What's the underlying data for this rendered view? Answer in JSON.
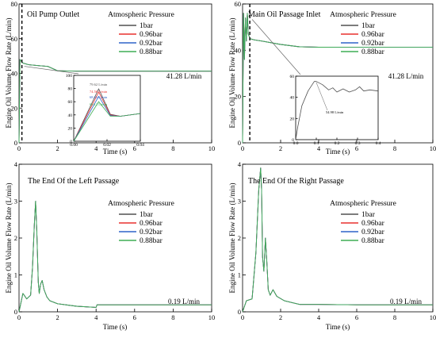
{
  "colors": {
    "s1bar": "#505050",
    "s096": "#e8312f",
    "s092": "#2f64c8",
    "s088": "#3fae55"
  },
  "chart_data": [
    {
      "type": "line",
      "title": "Oil Pump Outlet",
      "xlabel": "Time (s)",
      "ylabel": "Engine Oil Volume Flow Rate (L/min)",
      "xlim": [
        0,
        10
      ],
      "ylim": [
        0,
        80
      ],
      "xticks": [
        "0",
        "2",
        "4",
        "6",
        "8",
        "10"
      ],
      "yticks": [
        "0",
        "20",
        "40",
        "60",
        "80"
      ],
      "legend_title": "Atmospheric Pressure",
      "legend": [
        "1bar",
        "0.96bar",
        "0.92bar",
        "0.88bar"
      ],
      "steady_label": "41.28 L/min",
      "series": [
        {
          "name": "1bar",
          "x": [
            0,
            0.05,
            0.2,
            0.5,
            1,
            1.5,
            2,
            3,
            4,
            6,
            8,
            10
          ],
          "y": [
            0,
            48,
            46,
            45,
            44.5,
            44,
            41.5,
            41.3,
            41.3,
            41.28,
            41.28,
            41.28
          ]
        }
      ],
      "inset": {
        "xlim": [
          0,
          0.04
        ],
        "ylim": [
          0,
          100
        ],
        "xticks": [
          "0.00",
          "0.02",
          "0.04"
        ],
        "yticks": [
          "0",
          "20",
          "40",
          "60",
          "80",
          "100"
        ],
        "peak_labels": [
          "79.62 L/min",
          "74.56 L/min",
          "68.21 L/min",
          "60.12 L/min"
        ],
        "series": [
          {
            "name": "1bar",
            "x": [
              0,
              0.015,
              0.022,
              0.028,
              0.04
            ],
            "y": [
              0,
              79.62,
              41,
              38,
              42
            ]
          },
          {
            "name": "0.96bar",
            "x": [
              0,
              0.015,
              0.022,
              0.028,
              0.04
            ],
            "y": [
              0,
              74.56,
              40,
              38,
              42
            ]
          },
          {
            "name": "0.92bar",
            "x": [
              0,
              0.015,
              0.022,
              0.028,
              0.04
            ],
            "y": [
              0,
              68.21,
              39,
              38,
              42
            ]
          },
          {
            "name": "0.88bar",
            "x": [
              0,
              0.015,
              0.022,
              0.028,
              0.04
            ],
            "y": [
              0,
              60.12,
              38,
              38,
              42
            ]
          }
        ]
      }
    },
    {
      "type": "line",
      "title": "Main Oil Passage Inlet",
      "xlabel": "Time (s)",
      "ylabel": "Engine Oil Volume Flow Rate (L/min)",
      "xlim": [
        0,
        10
      ],
      "ylim": [
        0,
        60
      ],
      "xticks": [
        "0",
        "2",
        "4",
        "6",
        "8",
        "10"
      ],
      "yticks": [
        "0",
        "20",
        "40",
        "60"
      ],
      "legend_title": "Atmospheric Pressure",
      "legend": [
        "1bar",
        "0.96bar",
        "0.92bar",
        "0.88bar"
      ],
      "steady_label": "41.28 L/min",
      "series": [
        {
          "name": "1bar",
          "x": [
            0,
            0.05,
            0.1,
            0.15,
            0.2,
            0.25,
            0.3,
            0.4,
            0.6,
            1,
            2,
            3,
            4,
            6,
            8,
            10
          ],
          "y": [
            0,
            56,
            36,
            54,
            44,
            56,
            47,
            45,
            44.5,
            44,
            42.5,
            41.5,
            41.3,
            41.28,
            41.28,
            41.28
          ]
        }
      ],
      "inset": {
        "xlim": [
          0,
          0.4
        ],
        "ylim": [
          0,
          60
        ],
        "xticks": [
          "0.0",
          "0.1",
          "0.2",
          "0.3",
          "0.4"
        ],
        "yticks": [
          "0",
          "20",
          "40",
          "60"
        ],
        "peak_labels": [
          "54.98 L/min"
        ],
        "series": [
          {
            "name": "1bar",
            "x": [
              0,
              0.01,
              0.03,
              0.06,
              0.09,
              0.1,
              0.13,
              0.16,
              0.18,
              0.2,
              0.23,
              0.26,
              0.29,
              0.31,
              0.33,
              0.36,
              0.4
            ],
            "y": [
              0,
              12,
              32,
              46,
              54.98,
              55,
              52,
              47,
              49,
              45,
              48,
              45,
              47,
              50,
              46,
              47,
              46
            ]
          }
        ]
      }
    },
    {
      "type": "line",
      "title": "The End Of the Left Passage",
      "xlabel": "Time (s)",
      "ylabel": "Engine Oil Volume Flow Rate (L/min)",
      "xlim": [
        0,
        10
      ],
      "ylim": [
        0,
        4
      ],
      "xticks": [
        "0",
        "2",
        "4",
        "6",
        "8",
        "10"
      ],
      "yticks": [
        "0",
        "1",
        "2",
        "3",
        "4"
      ],
      "legend_title": "Atmospheric Pressure",
      "legend": [
        "1bar",
        "0.96bar",
        "0.92bar",
        "0.88bar"
      ],
      "steady_label": "0.19 L/min",
      "series": [
        {
          "name": "1bar",
          "x": [
            0,
            0.2,
            0.4,
            0.6,
            0.7,
            0.8,
            0.86,
            0.92,
            1.0,
            1.05,
            1.12,
            1.2,
            1.3,
            1.45,
            1.6,
            2,
            3,
            4,
            4.05,
            6,
            8,
            10
          ],
          "y": [
            0,
            0.5,
            0.35,
            0.45,
            1.2,
            2.4,
            3.0,
            2.2,
            0.8,
            0.5,
            0.75,
            0.85,
            0.6,
            0.4,
            0.3,
            0.22,
            0.15,
            0.12,
            0.19,
            0.19,
            0.19,
            0.19
          ]
        }
      ]
    },
    {
      "type": "line",
      "title": "The End Of the Right Passage",
      "xlabel": "Time (s)",
      "ylabel": "Engine Oil Volume Flow Rate (L/min)",
      "xlim": [
        0,
        10
      ],
      "ylim": [
        0,
        4
      ],
      "xticks": [
        "0",
        "2",
        "4",
        "6",
        "8",
        "10"
      ],
      "yticks": [
        "0",
        "1",
        "2",
        "3",
        "4"
      ],
      "legend_title": "Atmospheric Pressure",
      "legend": [
        "1bar",
        "0.96bar",
        "0.92bar",
        "0.88bar"
      ],
      "steady_label": "0.19 L/min",
      "series": [
        {
          "name": "1bar",
          "x": [
            0,
            0.2,
            0.5,
            0.7,
            0.85,
            0.95,
            1.0,
            1.05,
            1.12,
            1.2,
            1.27,
            1.35,
            1.45,
            1.6,
            1.8,
            2.2,
            3,
            4,
            6,
            8,
            10
          ],
          "y": [
            0,
            0.3,
            0.35,
            1.6,
            3.3,
            3.9,
            3.3,
            1.5,
            1.1,
            2.0,
            1.4,
            0.6,
            0.45,
            0.6,
            0.42,
            0.3,
            0.2,
            0.2,
            0.19,
            0.19,
            0.19
          ]
        }
      ]
    }
  ]
}
